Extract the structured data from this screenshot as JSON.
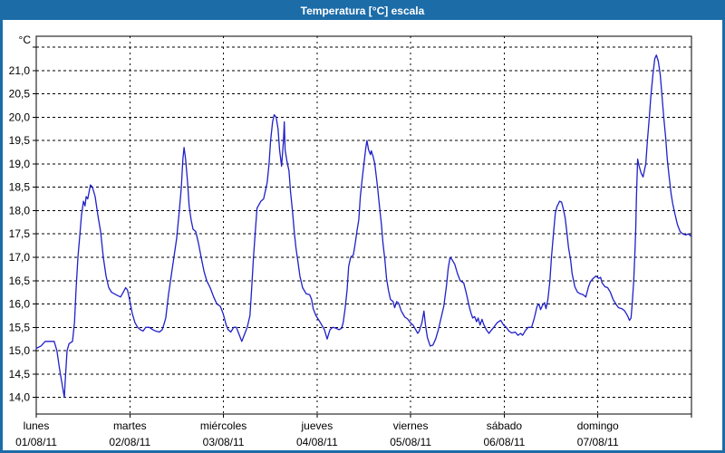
{
  "window": {
    "title": "Temperatura [°C] escala"
  },
  "colors": {
    "titlebar_bg": "#1c6ca8",
    "window_border": "#1c6ca8",
    "plot_border": "#000000",
    "gridline": "#000000",
    "series_line": "#2020c8",
    "text": "#000000",
    "background": "#ffffff"
  },
  "chart_data": {
    "type": "line",
    "title": "Temperatura [°C] escala",
    "ylabel": "°C",
    "y_axis_unit": "°C",
    "ylim": [
      13.65,
      21.75
    ],
    "grid": true,
    "legend_position": "none",
    "y_tick_values": [
      21.0,
      20.5,
      20.0,
      19.5,
      19.0,
      18.5,
      18.0,
      17.5,
      17.0,
      16.5,
      16.0,
      15.5,
      15.0,
      14.5,
      14.0
    ],
    "y_tick_labels": [
      "21,0",
      "20,5",
      "20,0",
      "19,5",
      "19,0",
      "18,5",
      "18,0",
      "17,5",
      "17,0",
      "16,5",
      "16,0",
      "15,5",
      "15,0",
      "14,5",
      "14,0"
    ],
    "y_gridline_top_unlabeled": 21.5,
    "x_total_hours": 168,
    "x_days": [
      {
        "name": "lunes",
        "date": "01/08/11"
      },
      {
        "name": "martes",
        "date": "02/08/11"
      },
      {
        "name": "miércoles",
        "date": "03/08/11"
      },
      {
        "name": "jueves",
        "date": "04/08/11"
      },
      {
        "name": "viernes",
        "date": "05/08/11"
      },
      {
        "name": "sábado",
        "date": "06/08/11"
      },
      {
        "name": "domingo",
        "date": "07/08/11"
      }
    ],
    "series": [
      {
        "name": "Temperatura",
        "color": "#2020c8",
        "points": [
          [
            0,
            15.05
          ],
          [
            1.2,
            15.1
          ],
          [
            2.3,
            15.2
          ],
          [
            4.6,
            15.2
          ],
          [
            5.3,
            15.0
          ],
          [
            6,
            14.6
          ],
          [
            6.7,
            14.25
          ],
          [
            7.2,
            14.0
          ],
          [
            7.4,
            14.3
          ],
          [
            7.9,
            15.0
          ],
          [
            8.4,
            15.15
          ],
          [
            9.3,
            15.2
          ],
          [
            9.8,
            15.6
          ],
          [
            10.2,
            16.3
          ],
          [
            10.7,
            17.0
          ],
          [
            11.2,
            17.5
          ],
          [
            11.6,
            17.9
          ],
          [
            12.1,
            18.2
          ],
          [
            12.5,
            18.1
          ],
          [
            12.8,
            18.3
          ],
          [
            13.2,
            18.25
          ],
          [
            13.9,
            18.55
          ],
          [
            14.4,
            18.5
          ],
          [
            15.1,
            18.3
          ],
          [
            15.8,
            17.9
          ],
          [
            16.5,
            17.55
          ],
          [
            17.2,
            17.0
          ],
          [
            17.9,
            16.6
          ],
          [
            18.6,
            16.35
          ],
          [
            19.3,
            16.25
          ],
          [
            20.4,
            16.2
          ],
          [
            21.6,
            16.15
          ],
          [
            22.3,
            16.25
          ],
          [
            22.9,
            16.35
          ],
          [
            23.4,
            16.3
          ],
          [
            23.9,
            16.1
          ],
          [
            24.6,
            15.8
          ],
          [
            25.3,
            15.6
          ],
          [
            26,
            15.5
          ],
          [
            26.7,
            15.45
          ],
          [
            27.4,
            15.42
          ],
          [
            28.1,
            15.5
          ],
          [
            29,
            15.5
          ],
          [
            29.9,
            15.45
          ],
          [
            30.6,
            15.42
          ],
          [
            31.6,
            15.4
          ],
          [
            32.3,
            15.45
          ],
          [
            32.7,
            15.55
          ],
          [
            33.2,
            15.7
          ],
          [
            33.9,
            16.2
          ],
          [
            34.6,
            16.6
          ],
          [
            35.3,
            17.0
          ],
          [
            36,
            17.4
          ],
          [
            36.7,
            18.0
          ],
          [
            37.2,
            18.5
          ],
          [
            37.6,
            19.1
          ],
          [
            37.9,
            19.35
          ],
          [
            38.3,
            19.1
          ],
          [
            38.8,
            18.6
          ],
          [
            39.2,
            18.1
          ],
          [
            39.7,
            17.8
          ],
          [
            40.2,
            17.6
          ],
          [
            40.9,
            17.55
          ],
          [
            41.6,
            17.3
          ],
          [
            42.3,
            17.0
          ],
          [
            43,
            16.7
          ],
          [
            43.7,
            16.5
          ],
          [
            44.6,
            16.35
          ],
          [
            45.5,
            16.15
          ],
          [
            46.3,
            16.0
          ],
          [
            47.2,
            15.95
          ],
          [
            47.9,
            15.8
          ],
          [
            48.7,
            15.55
          ],
          [
            49.2,
            15.45
          ],
          [
            49.9,
            15.4
          ],
          [
            50.6,
            15.5
          ],
          [
            51.3,
            15.5
          ],
          [
            52,
            15.35
          ],
          [
            52.7,
            15.2
          ],
          [
            53.4,
            15.35
          ],
          [
            54.1,
            15.5
          ],
          [
            54.8,
            15.75
          ],
          [
            55.2,
            16.3
          ],
          [
            55.7,
            17.0
          ],
          [
            56.2,
            17.6
          ],
          [
            56.6,
            18.05
          ],
          [
            57.6,
            18.2
          ],
          [
            58.3,
            18.25
          ],
          [
            58.7,
            18.4
          ],
          [
            59.2,
            18.6
          ],
          [
            59.7,
            19.0
          ],
          [
            60.1,
            19.5
          ],
          [
            60.6,
            19.9
          ],
          [
            61,
            20.05
          ],
          [
            61.5,
            20.0
          ],
          [
            62,
            19.75
          ],
          [
            62.4,
            19.3
          ],
          [
            62.9,
            18.95
          ],
          [
            63.4,
            19.5
          ],
          [
            63.6,
            19.9
          ],
          [
            63.8,
            19.3
          ],
          [
            64.3,
            19.05
          ],
          [
            64.8,
            18.85
          ],
          [
            65.2,
            18.4
          ],
          [
            65.7,
            18.0
          ],
          [
            66.2,
            17.5
          ],
          [
            66.6,
            17.2
          ],
          [
            67.1,
            16.9
          ],
          [
            67.6,
            16.6
          ],
          [
            68.3,
            16.35
          ],
          [
            69.2,
            16.22
          ],
          [
            70.1,
            16.2
          ],
          [
            70.6,
            16.1
          ],
          [
            71,
            15.9
          ],
          [
            71.7,
            15.75
          ],
          [
            72.5,
            15.65
          ],
          [
            73.2,
            15.55
          ],
          [
            73.9,
            15.45
          ],
          [
            74.6,
            15.25
          ],
          [
            75.3,
            15.45
          ],
          [
            76,
            15.5
          ],
          [
            76.9,
            15.48
          ],
          [
            77.6,
            15.45
          ],
          [
            78.3,
            15.48
          ],
          [
            78.7,
            15.6
          ],
          [
            79.2,
            15.9
          ],
          [
            79.7,
            16.3
          ],
          [
            80.1,
            16.8
          ],
          [
            80.6,
            17.0
          ],
          [
            81.3,
            17.05
          ],
          [
            81.8,
            17.3
          ],
          [
            82.2,
            17.55
          ],
          [
            82.7,
            17.8
          ],
          [
            83.1,
            18.3
          ],
          [
            83.6,
            18.7
          ],
          [
            84.1,
            19.05
          ],
          [
            84.5,
            19.35
          ],
          [
            84.8,
            19.5
          ],
          [
            85.2,
            19.3
          ],
          [
            85.7,
            19.2
          ],
          [
            85.9,
            19.28
          ],
          [
            86.4,
            19.15
          ],
          [
            86.8,
            19.0
          ],
          [
            87.5,
            18.5
          ],
          [
            88,
            18.1
          ],
          [
            88.5,
            17.7
          ],
          [
            88.9,
            17.3
          ],
          [
            89.4,
            16.95
          ],
          [
            89.8,
            16.55
          ],
          [
            90.3,
            16.3
          ],
          [
            90.8,
            16.1
          ],
          [
            91.5,
            16.05
          ],
          [
            91.9,
            15.92
          ],
          [
            92.4,
            16.05
          ],
          [
            92.9,
            16.02
          ],
          [
            93.6,
            15.85
          ],
          [
            94.5,
            15.72
          ],
          [
            95.2,
            15.68
          ],
          [
            95.9,
            15.6
          ],
          [
            96.6,
            15.55
          ],
          [
            97.3,
            15.45
          ],
          [
            97.8,
            15.37
          ],
          [
            98.2,
            15.42
          ],
          [
            98.9,
            15.6
          ],
          [
            99.4,
            15.85
          ],
          [
            99.8,
            15.55
          ],
          [
            100.3,
            15.28
          ],
          [
            101,
            15.1
          ],
          [
            101.7,
            15.12
          ],
          [
            102.4,
            15.25
          ],
          [
            103.1,
            15.45
          ],
          [
            103.8,
            15.7
          ],
          [
            104.5,
            15.95
          ],
          [
            105.2,
            16.4
          ],
          [
            105.6,
            16.75
          ],
          [
            106.1,
            17.0
          ],
          [
            106.6,
            16.95
          ],
          [
            107.3,
            16.85
          ],
          [
            108,
            16.65
          ],
          [
            108.7,
            16.5
          ],
          [
            109.6,
            16.45
          ],
          [
            110.3,
            16.22
          ],
          [
            111,
            15.95
          ],
          [
            111.5,
            15.8
          ],
          [
            111.9,
            15.7
          ],
          [
            112.4,
            15.73
          ],
          [
            112.9,
            15.62
          ],
          [
            113.3,
            15.7
          ],
          [
            113.8,
            15.55
          ],
          [
            114.3,
            15.67
          ],
          [
            114.7,
            15.57
          ],
          [
            115.4,
            15.45
          ],
          [
            116.1,
            15.37
          ],
          [
            116.6,
            15.43
          ],
          [
            117.3,
            15.5
          ],
          [
            118.2,
            15.6
          ],
          [
            119.1,
            15.65
          ],
          [
            119.8,
            15.55
          ],
          [
            120.5,
            15.5
          ],
          [
            121.2,
            15.42
          ],
          [
            121.9,
            15.38
          ],
          [
            122.8,
            15.4
          ],
          [
            123.5,
            15.33
          ],
          [
            124.2,
            15.37
          ],
          [
            124.7,
            15.33
          ],
          [
            125.4,
            15.43
          ],
          [
            126.1,
            15.5
          ],
          [
            127,
            15.5
          ],
          [
            127.7,
            15.7
          ],
          [
            128.4,
            15.95
          ],
          [
            128.9,
            16.0
          ],
          [
            129.3,
            15.88
          ],
          [
            129.8,
            15.97
          ],
          [
            130.3,
            16.03
          ],
          [
            130.7,
            15.9
          ],
          [
            131.2,
            16.1
          ],
          [
            131.7,
            16.5
          ],
          [
            132.1,
            17.0
          ],
          [
            132.6,
            17.5
          ],
          [
            133.1,
            17.95
          ],
          [
            133.5,
            18.08
          ],
          [
            134.2,
            18.2
          ],
          [
            134.7,
            18.18
          ],
          [
            135.1,
            18.05
          ],
          [
            135.6,
            17.85
          ],
          [
            136.1,
            17.5
          ],
          [
            136.5,
            17.2
          ],
          [
            137,
            16.95
          ],
          [
            137.4,
            16.65
          ],
          [
            138.1,
            16.37
          ],
          [
            138.8,
            16.25
          ],
          [
            139.5,
            16.22
          ],
          [
            140.2,
            16.2
          ],
          [
            140.9,
            16.15
          ],
          [
            141.6,
            16.37
          ],
          [
            142.1,
            16.48
          ],
          [
            142.8,
            16.55
          ],
          [
            143.5,
            16.6
          ],
          [
            144.2,
            16.55
          ],
          [
            144.7,
            16.57
          ],
          [
            145.1,
            16.45
          ],
          [
            145.8,
            16.37
          ],
          [
            146.5,
            16.35
          ],
          [
            147.2,
            16.25
          ],
          [
            147.9,
            16.1
          ],
          [
            148.6,
            16.0
          ],
          [
            149.3,
            15.92
          ],
          [
            150.2,
            15.9
          ],
          [
            150.9,
            15.85
          ],
          [
            151.6,
            15.75
          ],
          [
            152.1,
            15.65
          ],
          [
            152.5,
            15.7
          ],
          [
            152.8,
            16.0
          ],
          [
            153.2,
            16.5
          ],
          [
            153.5,
            17.1
          ],
          [
            153.7,
            17.6
          ],
          [
            153.9,
            18.3
          ],
          [
            154.2,
            19.1
          ],
          [
            154.6,
            18.95
          ],
          [
            155.1,
            18.8
          ],
          [
            155.6,
            18.72
          ],
          [
            156.3,
            19.0
          ],
          [
            156.7,
            19.5
          ],
          [
            157.2,
            20.0
          ],
          [
            157.6,
            20.45
          ],
          [
            158.1,
            20.9
          ],
          [
            158.6,
            21.25
          ],
          [
            159,
            21.33
          ],
          [
            159.5,
            21.2
          ],
          [
            160,
            20.9
          ],
          [
            160.4,
            20.5
          ],
          [
            160.9,
            20.0
          ],
          [
            161.4,
            19.55
          ],
          [
            161.8,
            19.1
          ],
          [
            162.3,
            18.7
          ],
          [
            162.8,
            18.35
          ],
          [
            163.2,
            18.15
          ],
          [
            163.7,
            17.95
          ],
          [
            164.4,
            17.7
          ],
          [
            165.1,
            17.55
          ],
          [
            165.8,
            17.5
          ],
          [
            166.5,
            17.48
          ],
          [
            167.2,
            17.5
          ],
          [
            167.9,
            17.45
          ]
        ]
      }
    ]
  }
}
